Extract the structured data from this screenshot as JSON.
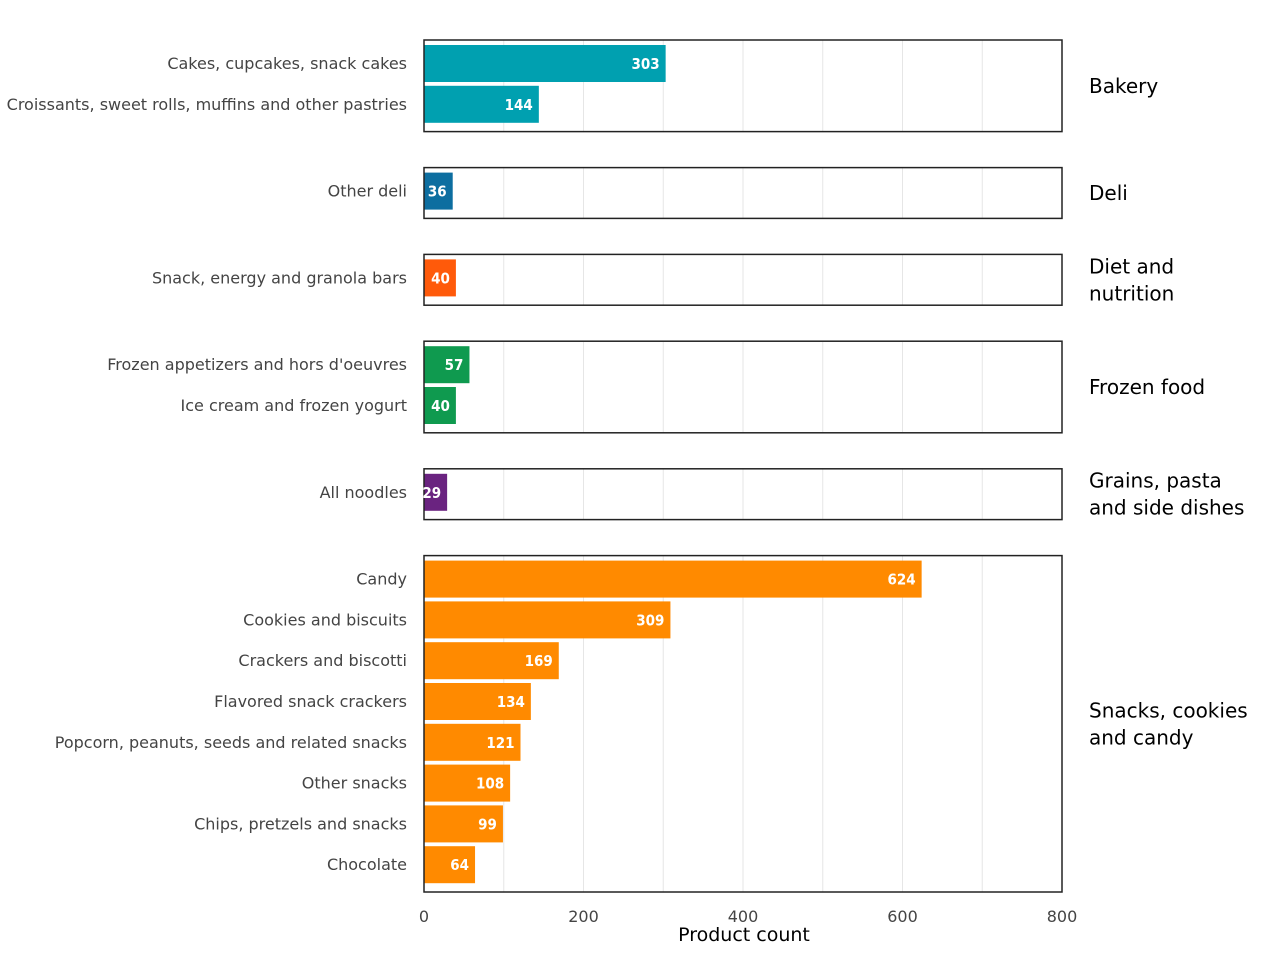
{
  "chart_data": {
    "type": "bar",
    "orientation": "horizontal",
    "xlabel": "Product count",
    "xlim": [
      0,
      800
    ],
    "xticks": [
      0,
      200,
      400,
      600,
      800
    ],
    "grid": true,
    "groups": [
      {
        "name": "Bakery",
        "color": "#00a0b0",
        "categories": [
          "Cakes, cupcakes, snack cakes",
          "Croissants, sweet rolls, muffins and other pastries"
        ],
        "values": [
          303,
          144
        ]
      },
      {
        "name": "Deli",
        "color": "#0d6ea0",
        "categories": [
          "Other deli"
        ],
        "values": [
          36
        ]
      },
      {
        "name": "Diet and nutrition",
        "color": "#ff5a0a",
        "categories": [
          "Snack, energy and granola bars"
        ],
        "values": [
          40
        ]
      },
      {
        "name": "Frozen food",
        "color": "#0f9a4f",
        "categories": [
          "Frozen appetizers and hors d'oeuvres",
          "Ice cream and frozen yogurt"
        ],
        "values": [
          57,
          40
        ]
      },
      {
        "name": "Grains, pasta and side dishes",
        "color": "#6a2380",
        "categories": [
          "All noodles"
        ],
        "values": [
          29
        ]
      },
      {
        "name": "Snacks, cookies and candy",
        "color": "#ff8a00",
        "categories": [
          "Candy",
          "Cookies and biscuits",
          "Crackers and biscotti",
          "Flavored snack crackers",
          "Popcorn, peanuts, seeds and related snacks",
          "Other snacks",
          "Chips, pretzels and snacks",
          "Chocolate"
        ],
        "values": [
          624,
          309,
          169,
          134,
          121,
          108,
          99,
          64
        ]
      }
    ]
  }
}
